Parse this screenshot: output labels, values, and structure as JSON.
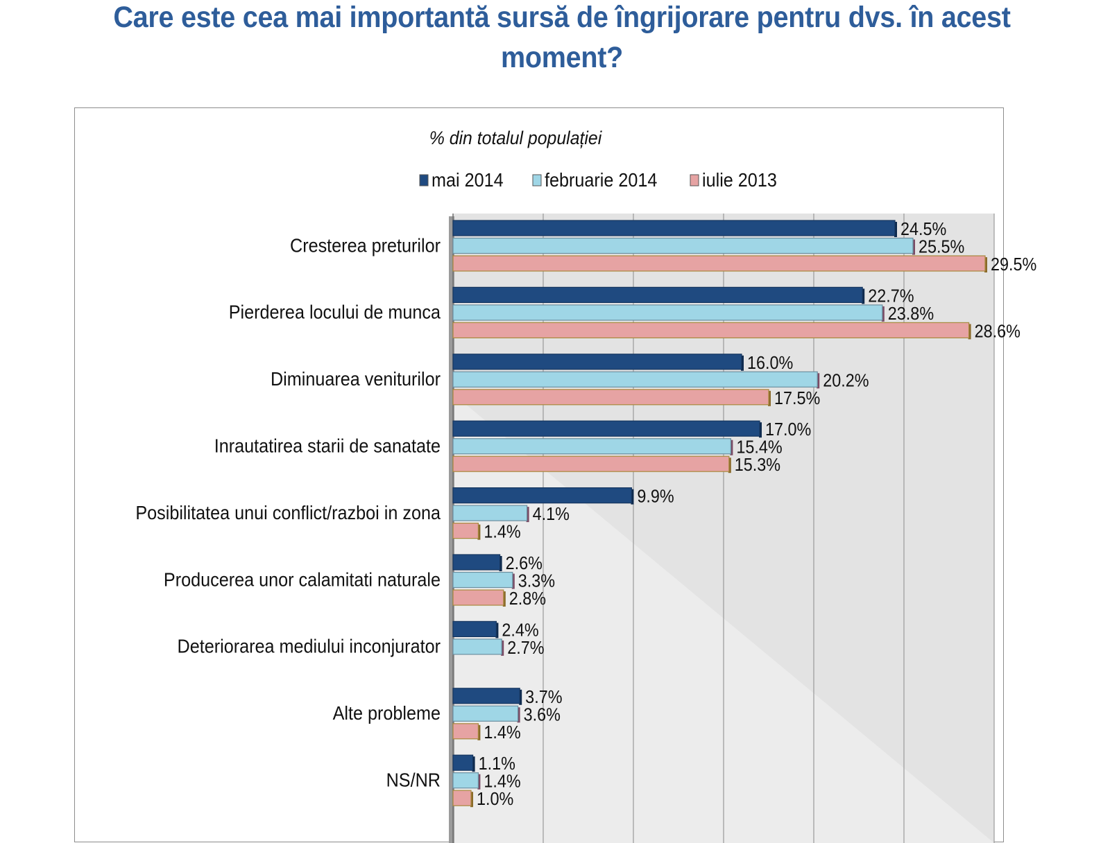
{
  "page": {
    "title": "Care este cea mai importantă sursă de îngrijorare pentru dvs. în acest moment?"
  },
  "colors": {
    "mai_2014": "#1f4a80",
    "februarie_2014": "#9fd6e6",
    "iulie_2013": "#e6a3a3",
    "plot_background": "#e3e3e3",
    "title": "#2e5d9a"
  },
  "chart_data": {
    "type": "bar",
    "orientation": "horizontal",
    "subtitle": "% din totalul populației",
    "legend_position": "top",
    "categories": [
      "Cresterea preturilor",
      "Pierderea locului de munca",
      "Diminuarea veniturilor",
      "Inrautatirea starii de sanatate",
      "Posibilitatea unui conflict/razboi in zona",
      "Producerea unor calamitati naturale",
      "Deteriorarea mediului inconjurator",
      "Alte probleme",
      "NS/NR"
    ],
    "series": [
      {
        "name": "mai 2014",
        "values": [
          24.5,
          22.7,
          16.0,
          17.0,
          9.9,
          2.6,
          2.4,
          3.7,
          1.1
        ],
        "labels": [
          "24.5%",
          "22.7%",
          "16.0%",
          "17.0%",
          "9.9%",
          "2.6%",
          "2.4%",
          "3.7%",
          "1.1%"
        ]
      },
      {
        "name": "februarie 2014",
        "values": [
          25.5,
          23.8,
          20.2,
          15.4,
          4.1,
          3.3,
          2.7,
          3.6,
          1.4
        ],
        "labels": [
          "25.5%",
          "23.8%",
          "20.2%",
          "15.4%",
          "4.1%",
          "3.3%",
          "2.7%",
          "3.6%",
          "1.4%"
        ]
      },
      {
        "name": "iulie 2013",
        "values": [
          29.5,
          28.6,
          17.5,
          15.3,
          1.4,
          2.8,
          null,
          1.4,
          1.0
        ],
        "labels": [
          "29.5%",
          "28.6%",
          "17.5%",
          "15.3%",
          "1.4%",
          "2.8%",
          null,
          "1.4%",
          "1.0%"
        ]
      }
    ],
    "xlim": [
      0,
      30
    ],
    "gridlines_every": 5,
    "grid": true,
    "tick_labels_visible": false
  }
}
